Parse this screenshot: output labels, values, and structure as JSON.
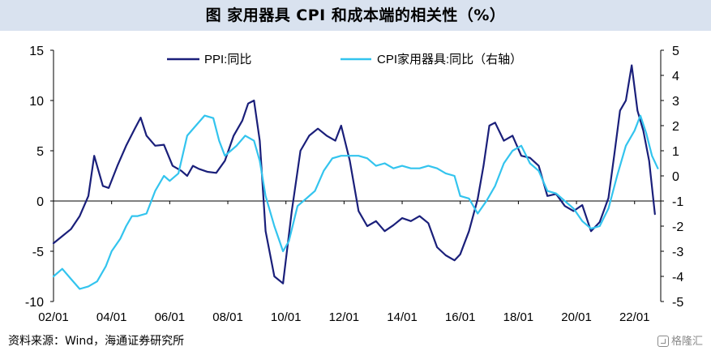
{
  "title": "图  家用器具 CPI 和成本端的相关性（%）",
  "source": "资料来源：Wind，海通证券研究所",
  "watermark": "格隆汇",
  "colors": {
    "ppi": "#1a1f7a",
    "cpi": "#33c4ee",
    "axis": "#000000",
    "titleBg": "#d9e2ef"
  },
  "chart_data": {
    "type": "line",
    "x_tick_labels": [
      "02/01",
      "04/01",
      "06/01",
      "08/01",
      "10/01",
      "12/01",
      "14/01",
      "16/01",
      "18/01",
      "20/01",
      "22/01"
    ],
    "x_range": [
      2002.0,
      2022.9
    ],
    "y_left": {
      "range": [
        -10,
        15
      ],
      "ticks": [
        "15",
        "10",
        "5",
        "0",
        "-5",
        "-10"
      ]
    },
    "y_right": {
      "range": [
        -5,
        5
      ],
      "ticks": [
        "5",
        "4",
        "3",
        "2",
        "1",
        "0",
        "-1",
        "-2",
        "-3",
        "-4",
        "-5"
      ]
    },
    "grid": false,
    "legend_position": "top",
    "series": [
      {
        "name": "PPI:同比",
        "axis": "left",
        "x": [
          2002.0,
          2002.3,
          2002.6,
          2002.9,
          2003.2,
          2003.4,
          2003.7,
          2003.9,
          2004.2,
          2004.5,
          2004.8,
          2005.0,
          2005.2,
          2005.5,
          2005.8,
          2006.1,
          2006.4,
          2006.6,
          2006.8,
          2007.0,
          2007.3,
          2007.6,
          2007.9,
          2008.2,
          2008.5,
          2008.7,
          2008.9,
          2009.1,
          2009.3,
          2009.6,
          2009.9,
          2010.2,
          2010.5,
          2010.8,
          2011.1,
          2011.4,
          2011.7,
          2011.9,
          2012.2,
          2012.5,
          2012.8,
          2013.1,
          2013.4,
          2013.7,
          2014.0,
          2014.3,
          2014.6,
          2014.9,
          2015.2,
          2015.5,
          2015.8,
          2016.0,
          2016.3,
          2016.6,
          2016.8,
          2017.0,
          2017.2,
          2017.5,
          2017.8,
          2018.1,
          2018.4,
          2018.7,
          2019.0,
          2019.3,
          2019.6,
          2019.9,
          2020.2,
          2020.5,
          2020.8,
          2021.1,
          2021.3,
          2021.5,
          2021.7,
          2021.9,
          2022.1,
          2022.3,
          2022.5,
          2022.7
        ],
        "values": [
          -4.2,
          -3.5,
          -2.8,
          -1.5,
          0.5,
          4.5,
          1.5,
          1.3,
          3.5,
          5.5,
          7.2,
          8.3,
          6.5,
          5.5,
          5.6,
          3.5,
          3.0,
          2.5,
          3.5,
          3.2,
          2.9,
          2.8,
          4.0,
          6.5,
          8.0,
          9.7,
          10.0,
          6.0,
          -3.0,
          -7.5,
          -8.2,
          -1.0,
          5.0,
          6.5,
          7.2,
          6.5,
          6.0,
          7.5,
          4.0,
          -1.0,
          -2.5,
          -2.0,
          -3.0,
          -2.4,
          -1.7,
          -2.0,
          -1.5,
          -2.2,
          -4.6,
          -5.4,
          -5.9,
          -5.3,
          -3.0,
          0.2,
          3.5,
          7.5,
          7.8,
          6.0,
          6.5,
          4.5,
          4.3,
          3.5,
          0.5,
          0.7,
          -0.5,
          -1.0,
          -0.4,
          -3.0,
          -2.1,
          0.3,
          4.6,
          9.0,
          10.0,
          13.5,
          9.0,
          7.0,
          4.0,
          -1.3
        ]
      },
      {
        "name": "CPI家用器具:同比（右轴）",
        "axis": "right",
        "x": [
          2002.0,
          2002.3,
          2002.6,
          2002.9,
          2003.2,
          2003.5,
          2003.8,
          2004.0,
          2004.3,
          2004.5,
          2004.7,
          2004.9,
          2005.2,
          2005.5,
          2005.8,
          2006.0,
          2006.3,
          2006.6,
          2006.9,
          2007.2,
          2007.5,
          2007.7,
          2007.9,
          2008.1,
          2008.3,
          2008.6,
          2008.9,
          2009.1,
          2009.3,
          2009.6,
          2009.9,
          2010.1,
          2010.4,
          2010.7,
          2011.0,
          2011.3,
          2011.6,
          2011.9,
          2012.2,
          2012.5,
          2012.8,
          2013.1,
          2013.4,
          2013.7,
          2014.0,
          2014.3,
          2014.6,
          2014.9,
          2015.2,
          2015.5,
          2015.8,
          2016.0,
          2016.3,
          2016.6,
          2016.9,
          2017.2,
          2017.5,
          2017.8,
          2018.1,
          2018.4,
          2018.7,
          2019.0,
          2019.3,
          2019.6,
          2019.9,
          2020.2,
          2020.5,
          2020.8,
          2021.1,
          2021.4,
          2021.7,
          2022.0,
          2022.2,
          2022.4,
          2022.6,
          2022.8
        ],
        "values": [
          -4.0,
          -3.7,
          -4.1,
          -4.5,
          -4.4,
          -4.2,
          -3.6,
          -3.0,
          -2.5,
          -2.0,
          -1.6,
          -1.6,
          -1.5,
          -0.6,
          0.0,
          -0.2,
          0.1,
          1.6,
          2.0,
          2.4,
          2.3,
          1.4,
          0.8,
          1.0,
          1.2,
          1.6,
          1.4,
          0.6,
          -0.8,
          -2.0,
          -3.0,
          -2.6,
          -1.2,
          -0.9,
          -0.6,
          0.2,
          0.7,
          0.8,
          0.8,
          0.8,
          0.7,
          0.4,
          0.5,
          0.3,
          0.4,
          0.3,
          0.3,
          0.4,
          0.3,
          0.1,
          0.0,
          -0.8,
          -0.9,
          -1.5,
          -1.0,
          -0.4,
          0.5,
          1.0,
          1.2,
          0.5,
          0.2,
          -0.6,
          -0.7,
          -1.0,
          -1.3,
          -1.8,
          -2.1,
          -2.0,
          -1.3,
          0.0,
          1.2,
          1.8,
          2.4,
          1.7,
          0.8,
          0.3
        ]
      }
    ]
  }
}
